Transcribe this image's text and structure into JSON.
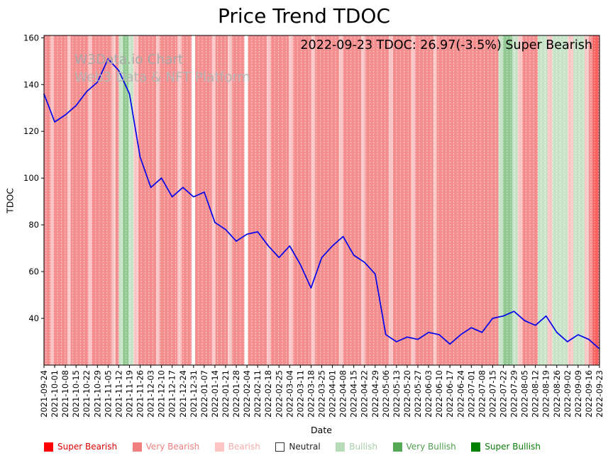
{
  "title": "Price Trend TDOC",
  "annotation": "2022-09-23 TDOC: 26.97(-3.5%) Super Bearish",
  "watermark": {
    "line1": "W3Data.io Chart",
    "line2": "Web3 Data & NFT Platform"
  },
  "chart_data": {
    "type": "line",
    "title": "Price Trend TDOC",
    "xlabel": "Date",
    "ylabel": "TDOC",
    "ylim": [
      20,
      161
    ],
    "yticks": [
      40,
      60,
      80,
      100,
      120,
      140,
      160
    ],
    "grid": "vertical-dotted-daily",
    "legend_position": "bottom",
    "line_color": "#0000ee",
    "x": [
      "2021-09-24",
      "2021-10-01",
      "2021-10-08",
      "2021-10-15",
      "2021-10-22",
      "2021-10-29",
      "2021-11-05",
      "2021-11-12",
      "2021-11-19",
      "2021-11-26",
      "2021-12-03",
      "2021-12-10",
      "2021-12-17",
      "2021-12-24",
      "2021-12-31",
      "2022-01-07",
      "2022-01-14",
      "2022-01-21",
      "2022-01-28",
      "2022-02-04",
      "2022-02-11",
      "2022-02-18",
      "2022-02-25",
      "2022-03-04",
      "2022-03-11",
      "2022-03-18",
      "2022-03-25",
      "2022-04-01",
      "2022-04-08",
      "2022-04-15",
      "2022-04-22",
      "2022-04-29",
      "2022-05-06",
      "2022-05-13",
      "2022-05-20",
      "2022-05-27",
      "2022-06-03",
      "2022-06-10",
      "2022-06-17",
      "2022-06-24",
      "2022-07-01",
      "2022-07-08",
      "2022-07-15",
      "2022-07-22",
      "2022-07-29",
      "2022-08-05",
      "2022-08-12",
      "2022-08-19",
      "2022-08-26",
      "2022-09-02",
      "2022-09-09",
      "2022-09-16",
      "2022-09-23"
    ],
    "values": [
      136,
      124,
      127,
      131,
      137,
      141,
      151,
      146,
      136,
      109,
      96,
      100,
      92,
      96,
      92,
      94,
      81,
      78,
      73,
      76,
      77,
      71,
      66,
      71,
      63,
      53,
      66,
      71,
      75,
      67,
      64,
      59,
      33,
      30,
      32,
      31,
      34,
      33,
      29,
      33,
      36,
      34,
      40,
      41,
      43,
      39,
      37,
      41,
      34,
      30,
      33,
      31,
      26.97
    ],
    "latest": {
      "date": "2022-09-23",
      "price": 26.97,
      "change_pct": -3.5,
      "sentiment": "Super Bearish"
    },
    "band_colors": {
      "super_bearish": "#f96060",
      "very_bearish": "#f58f8f",
      "bearish": "#fbc6c6",
      "neutral": "#ffffff",
      "bullish": "#c9e5c9",
      "very_bullish": "#93c993",
      "super_bullish": "#49a049"
    },
    "bands": [
      [
        0.0,
        0.012,
        "very_bearish"
      ],
      [
        0.012,
        0.017,
        "bearish"
      ],
      [
        0.017,
        0.042,
        "very_bearish"
      ],
      [
        0.042,
        0.048,
        "bearish"
      ],
      [
        0.048,
        0.08,
        "very_bearish"
      ],
      [
        0.08,
        0.086,
        "bearish"
      ],
      [
        0.086,
        0.122,
        "very_bearish"
      ],
      [
        0.122,
        0.129,
        "bearish"
      ],
      [
        0.129,
        0.135,
        "very_bearish"
      ],
      [
        0.135,
        0.142,
        "bullish"
      ],
      [
        0.142,
        0.152,
        "very_bullish"
      ],
      [
        0.152,
        0.161,
        "bullish"
      ],
      [
        0.161,
        0.17,
        "bearish"
      ],
      [
        0.17,
        0.202,
        "very_bearish"
      ],
      [
        0.202,
        0.208,
        "bearish"
      ],
      [
        0.208,
        0.24,
        "very_bearish"
      ],
      [
        0.24,
        0.248,
        "bearish"
      ],
      [
        0.248,
        0.266,
        "very_bearish"
      ],
      [
        0.266,
        0.272,
        "neutral"
      ],
      [
        0.272,
        0.302,
        "very_bearish"
      ],
      [
        0.302,
        0.309,
        "bearish"
      ],
      [
        0.309,
        0.331,
        "very_bearish"
      ],
      [
        0.331,
        0.338,
        "bearish"
      ],
      [
        0.338,
        0.361,
        "very_bearish"
      ],
      [
        0.361,
        0.367,
        "neutral"
      ],
      [
        0.367,
        0.401,
        "very_bearish"
      ],
      [
        0.401,
        0.408,
        "bearish"
      ],
      [
        0.408,
        0.441,
        "very_bearish"
      ],
      [
        0.441,
        0.448,
        "bearish"
      ],
      [
        0.448,
        0.481,
        "very_bearish"
      ],
      [
        0.481,
        0.488,
        "bearish"
      ],
      [
        0.488,
        0.531,
        "very_bearish"
      ],
      [
        0.531,
        0.538,
        "bearish"
      ],
      [
        0.538,
        0.571,
        "very_bearish"
      ],
      [
        0.571,
        0.578,
        "bearish"
      ],
      [
        0.578,
        0.621,
        "very_bearish"
      ],
      [
        0.621,
        0.628,
        "bearish"
      ],
      [
        0.628,
        0.661,
        "very_bearish"
      ],
      [
        0.661,
        0.668,
        "bearish"
      ],
      [
        0.668,
        0.701,
        "very_bearish"
      ],
      [
        0.701,
        0.707,
        "bearish"
      ],
      [
        0.707,
        0.818,
        "very_bearish"
      ],
      [
        0.818,
        0.826,
        "bullish"
      ],
      [
        0.826,
        0.843,
        "very_bullish"
      ],
      [
        0.843,
        0.853,
        "bullish"
      ],
      [
        0.853,
        0.861,
        "bearish"
      ],
      [
        0.861,
        0.889,
        "very_bearish"
      ],
      [
        0.889,
        0.906,
        "bullish"
      ],
      [
        0.906,
        0.915,
        "bearish"
      ],
      [
        0.915,
        0.943,
        "bullish"
      ],
      [
        0.943,
        0.953,
        "bearish"
      ],
      [
        0.953,
        0.973,
        "bullish"
      ],
      [
        0.973,
        0.981,
        "bearish"
      ],
      [
        0.981,
        0.988,
        "very_bearish"
      ],
      [
        0.988,
        1.0,
        "super_bearish"
      ]
    ]
  },
  "legend": {
    "items": [
      {
        "label": "Super Bearish",
        "color": "#ff0000",
        "text_color": "#e00000",
        "border": false
      },
      {
        "label": "Very Bearish",
        "color": "#f08080",
        "text_color": "#ef7d7d",
        "border": false
      },
      {
        "label": "Bearish",
        "color": "#ffc4c4",
        "text_color": "#f5acac",
        "border": false
      },
      {
        "label": "Neutral",
        "color": "#ffffff",
        "text_color": "#222222",
        "border": true
      },
      {
        "label": "Bullish",
        "color": "#b8dcb8",
        "text_color": "#a9cfa9",
        "border": false
      },
      {
        "label": "Very Bullish",
        "color": "#55a855",
        "text_color": "#4d9e4d",
        "border": false
      },
      {
        "label": "Super Bullish",
        "color": "#008000",
        "text_color": "#0a7d0a",
        "border": false
      }
    ]
  }
}
